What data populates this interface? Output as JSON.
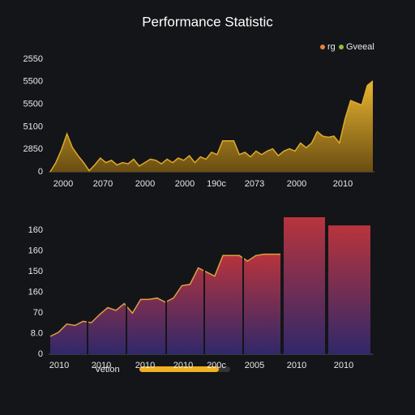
{
  "title": "Performance Statistic",
  "legend": [
    {
      "name": "rg",
      "color": "#e8823a"
    },
    {
      "name": "Gveeal",
      "color": "#8fbf3a"
    }
  ],
  "control": {
    "label": "Vetion"
  },
  "chart_data": [
    {
      "type": "area",
      "color": "#e0aa2a",
      "ylim": [
        0,
        100
      ],
      "y_labels": [
        "2550",
        "5500",
        "5500",
        "5100",
        "2850",
        "0"
      ],
      "x_labels": [
        "2000",
        "2070",
        "2000",
        "2000",
        "190c",
        "2073",
        "2000",
        "2010"
      ],
      "values": [
        0,
        8,
        19,
        33,
        21,
        14,
        8,
        1,
        6,
        12,
        8,
        10,
        6,
        8,
        7,
        11,
        5,
        8,
        11,
        10,
        7,
        11,
        8,
        12,
        10,
        14,
        8,
        13,
        11,
        17,
        15,
        27,
        27,
        27,
        15,
        17,
        13,
        18,
        15,
        18,
        20,
        14,
        18,
        20,
        18,
        25,
        21,
        25,
        35,
        31,
        30,
        31,
        25,
        46,
        62,
        60,
        58,
        75,
        79
      ]
    },
    {
      "type": "area-bar",
      "color": "#e0a040",
      "ylim": [
        0,
        100
      ],
      "y_labels": [
        "160",
        "160",
        "150",
        "160",
        "70",
        "8.0",
        "0"
      ],
      "x_labels": [
        "2010",
        "2010",
        "2010",
        "2010",
        "200c",
        "2005",
        "2010",
        "2010"
      ],
      "values": [
        13,
        16,
        22,
        21,
        24,
        23,
        29,
        34,
        32,
        37,
        30,
        40,
        40,
        41,
        38,
        41,
        50,
        51,
        63,
        60,
        57,
        72,
        72,
        72,
        68,
        72,
        73,
        73,
        73
      ],
      "bars": [
        100,
        94
      ]
    }
  ]
}
